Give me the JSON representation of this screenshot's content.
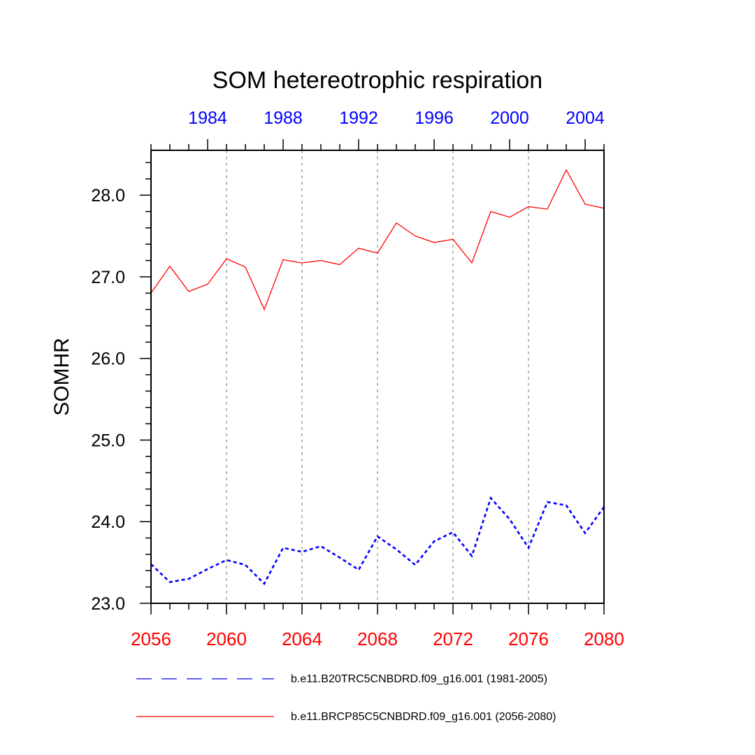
{
  "chart_data": {
    "type": "line",
    "title": "SOM hetereotrophic respiration",
    "ylabel": "SOMHR",
    "ylim": [
      23.0,
      28.55
    ],
    "yticks": [
      "23.0",
      "24.0",
      "25.0",
      "26.0",
      "27.0",
      "28.0"
    ],
    "x_bottom": {
      "range": [
        2056,
        2080
      ],
      "ticks": [
        "2056",
        "2060",
        "2064",
        "2068",
        "2072",
        "2076",
        "2080"
      ],
      "color": "#ff0000"
    },
    "x_top": {
      "range": [
        1981,
        2005
      ],
      "ticks": [
        "1984",
        "1988",
        "1992",
        "1996",
        "2000",
        "2004"
      ],
      "color": "#0000ff"
    },
    "grid": "vertical dashed at major bottom ticks",
    "legend_position": "bottom",
    "series": [
      {
        "name": "b.e11.B20TRC5CNBDRD.f09_g16.001 (1981-2005)",
        "axis": "top",
        "color": "#0000ff",
        "style": "dashed",
        "x": [
          1981,
          1982,
          1983,
          1984,
          1985,
          1986,
          1987,
          1988,
          1989,
          1990,
          1991,
          1992,
          1993,
          1994,
          1995,
          1996,
          1997,
          1998,
          1999,
          2000,
          2001,
          2002,
          2003,
          2004,
          2005
        ],
        "values": [
          23.48,
          23.26,
          23.3,
          23.42,
          23.53,
          23.47,
          23.24,
          23.68,
          23.63,
          23.7,
          23.56,
          23.41,
          23.82,
          23.66,
          23.47,
          23.76,
          23.87,
          23.58,
          24.29,
          24.03,
          23.68,
          24.24,
          24.2,
          23.86,
          24.18
        ]
      },
      {
        "name": "b.e11.BRCP85C5CNBDRD.f09_g16.001 (2056-2080)",
        "axis": "bottom",
        "color": "#ff0000",
        "style": "solid",
        "x": [
          2056,
          2057,
          2058,
          2059,
          2060,
          2061,
          2062,
          2063,
          2064,
          2065,
          2066,
          2067,
          2068,
          2069,
          2070,
          2071,
          2072,
          2073,
          2074,
          2075,
          2076,
          2077,
          2078,
          2079,
          2080
        ],
        "values": [
          26.8,
          27.13,
          26.82,
          26.91,
          27.22,
          27.12,
          26.6,
          27.21,
          27.17,
          27.2,
          27.15,
          27.35,
          27.29,
          27.66,
          27.5,
          27.42,
          27.46,
          27.17,
          27.8,
          27.73,
          27.86,
          27.83,
          28.31,
          27.89,
          27.84
        ]
      }
    ]
  }
}
